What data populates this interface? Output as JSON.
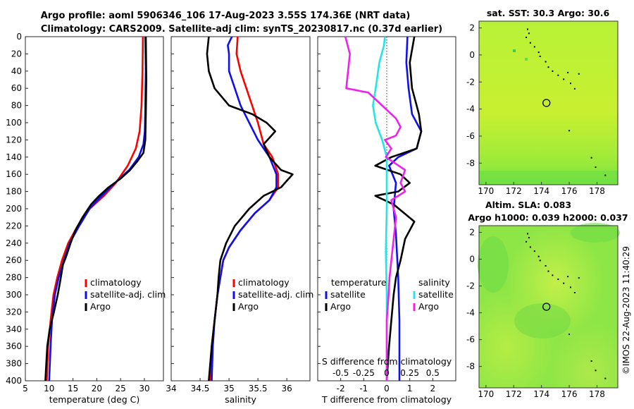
{
  "title": {
    "line1": "Argo profile: aoml 5906346_106 17-Aug-2023 3.55S 174.36E (NRT data)",
    "line2": "Climatology: CARS2009. Satellite-adj clim: synTS_20230817.nc (0.37d earlier)"
  },
  "credit": "©IMOS 22-Aug-2023 11:40:29",
  "colors": {
    "climatology": "#ff0000",
    "satellite": "#1010ee",
    "argo": "#000000",
    "sal_sat": "#22e6e6",
    "sal_argo": "#ee22ee"
  },
  "chart_data": [
    {
      "type": "line",
      "name": "temperature",
      "xlabel": "temperature (deg C)",
      "ylabel": "",
      "xlim": [
        5,
        34
      ],
      "ylim": [
        0,
        400
      ],
      "xticks": [
        5,
        10,
        15,
        20,
        25,
        30
      ],
      "yticks": [
        0,
        20,
        40,
        60,
        80,
        100,
        120,
        140,
        160,
        180,
        200,
        220,
        240,
        260,
        280,
        300,
        320,
        340,
        360,
        380,
        400
      ],
      "legend": [
        "climatology",
        "satellite-adj. clim",
        "Argo"
      ],
      "series": [
        {
          "name": "climatology",
          "color": "#ff0000",
          "points": [
            [
              29.7,
              0
            ],
            [
              29.6,
              40
            ],
            [
              29.4,
              80
            ],
            [
              29.0,
              110
            ],
            [
              28.2,
              130
            ],
            [
              26.5,
              150
            ],
            [
              24.0,
              170
            ],
            [
              21.5,
              185
            ],
            [
              18.5,
              200
            ],
            [
              16.0,
              220
            ],
            [
              14.0,
              240
            ],
            [
              12.7,
              260
            ],
            [
              11.7,
              280
            ],
            [
              10.9,
              300
            ],
            [
              10.3,
              330
            ],
            [
              9.8,
              360
            ],
            [
              9.5,
              400
            ]
          ]
        },
        {
          "name": "satellite-adj. clim",
          "color": "#1010ee",
          "points": [
            [
              30.2,
              0
            ],
            [
              30.3,
              40
            ],
            [
              30.2,
              80
            ],
            [
              30.1,
              110
            ],
            [
              29.8,
              125
            ],
            [
              28.8,
              140
            ],
            [
              26.8,
              155
            ],
            [
              23.8,
              170
            ],
            [
              21.0,
              185
            ],
            [
              18.5,
              200
            ],
            [
              16.3,
              220
            ],
            [
              14.3,
              240
            ],
            [
              13.1,
              260
            ],
            [
              12.0,
              280
            ],
            [
              11.2,
              300
            ],
            [
              10.6,
              330
            ],
            [
              10.3,
              360
            ],
            [
              10.0,
              400
            ]
          ]
        },
        {
          "name": "Argo",
          "color": "#000000",
          "points": [
            [
              30.3,
              0
            ],
            [
              30.4,
              50
            ],
            [
              30.3,
              90
            ],
            [
              30.2,
              120
            ],
            [
              29.8,
              135
            ],
            [
              28.5,
              145
            ],
            [
              27.0,
              155
            ],
            [
              25.0,
              165
            ],
            [
              22.5,
              175
            ],
            [
              20.5,
              185
            ],
            [
              18.8,
              195
            ],
            [
              17.0,
              210
            ],
            [
              15.5,
              225
            ],
            [
              14.5,
              240
            ],
            [
              13.6,
              255
            ],
            [
              12.9,
              265
            ],
            [
              12.3,
              285
            ],
            [
              11.8,
              300
            ],
            [
              11.0,
              320
            ],
            [
              10.1,
              340
            ],
            [
              9.6,
              360
            ],
            [
              9.4,
              380
            ],
            [
              9.2,
              400
            ]
          ]
        }
      ]
    },
    {
      "type": "line",
      "name": "salinity",
      "xlabel": "salinity",
      "ylabel": "",
      "xlim": [
        34,
        36.4
      ],
      "ylim": [
        0,
        400
      ],
      "xticks": [
        34,
        34.5,
        35,
        35.5,
        36
      ],
      "legend": [
        "climatology",
        "satellite-adj. clim",
        "Argo"
      ],
      "series": [
        {
          "name": "climatology",
          "color": "#ff0000",
          "points": [
            [
              35.15,
              0
            ],
            [
              35.13,
              20
            ],
            [
              35.2,
              40
            ],
            [
              35.3,
              60
            ],
            [
              35.4,
              80
            ],
            [
              35.5,
              100
            ],
            [
              35.6,
              125
            ],
            [
              35.75,
              140
            ],
            [
              35.85,
              160
            ],
            [
              35.85,
              175
            ],
            [
              35.7,
              190
            ],
            [
              35.45,
              205
            ],
            [
              35.2,
              225
            ],
            [
              35.0,
              245
            ],
            [
              34.9,
              260
            ],
            [
              34.85,
              280
            ],
            [
              34.8,
              300
            ],
            [
              34.75,
              330
            ],
            [
              34.7,
              360
            ],
            [
              34.68,
              400
            ]
          ]
        },
        {
          "name": "satellite-adj. clim",
          "color": "#1010ee",
          "points": [
            [
              35.05,
              0
            ],
            [
              34.98,
              10
            ],
            [
              35.0,
              20
            ],
            [
              35.0,
              40
            ],
            [
              35.1,
              60
            ],
            [
              35.2,
              80
            ],
            [
              35.35,
              100
            ],
            [
              35.5,
              120
            ],
            [
              35.7,
              140
            ],
            [
              35.82,
              160
            ],
            [
              35.82,
              175
            ],
            [
              35.7,
              190
            ],
            [
              35.45,
              205
            ],
            [
              35.2,
              225
            ],
            [
              35.0,
              245
            ],
            [
              34.9,
              260
            ],
            [
              34.85,
              280
            ],
            [
              34.8,
              300
            ],
            [
              34.75,
              330
            ],
            [
              34.72,
              360
            ],
            [
              34.7,
              400
            ]
          ]
        },
        {
          "name": "Argo",
          "color": "#000000",
          "points": [
            [
              34.65,
              0
            ],
            [
              34.62,
              20
            ],
            [
              34.65,
              40
            ],
            [
              34.75,
              60
            ],
            [
              35.0,
              80
            ],
            [
              35.4,
              90
            ],
            [
              35.65,
              100
            ],
            [
              35.8,
              110
            ],
            [
              35.6,
              125
            ],
            [
              35.7,
              140
            ],
            [
              35.9,
              155
            ],
            [
              36.1,
              160
            ],
            [
              35.9,
              175
            ],
            [
              35.6,
              185
            ],
            [
              35.35,
              200
            ],
            [
              35.1,
              220
            ],
            [
              34.95,
              240
            ],
            [
              34.85,
              260
            ],
            [
              34.82,
              280
            ],
            [
              34.8,
              300
            ],
            [
              34.75,
              330
            ],
            [
              34.7,
              360
            ],
            [
              34.65,
              400
            ]
          ]
        }
      ]
    },
    {
      "type": "line",
      "name": "difference",
      "xlabel": "T difference from climatology",
      "x2label": "S difference from climatology",
      "ylabel": "",
      "xlim": [
        -3,
        3
      ],
      "x2lim": [
        -0.75,
        0.75
      ],
      "ylim": [
        0,
        400
      ],
      "xticks": [
        -2,
        -1,
        0,
        1,
        2
      ],
      "x2ticks": [
        -0.5,
        -0.25,
        0,
        0.25,
        0.5
      ],
      "x2ticklabels": [
        "-0.5",
        "-0.25",
        "0",
        "0.25",
        "0.5"
      ],
      "legend_temperature_title": "temperature",
      "legend_salinity_title": "salinity",
      "legend": [
        "satellite",
        "Argo"
      ],
      "series": [
        {
          "name": "temperature satellite",
          "color": "#1010ee",
          "points": [
            [
              0.9,
              0
            ],
            [
              0.85,
              30
            ],
            [
              0.95,
              60
            ],
            [
              1.1,
              90
            ],
            [
              1.5,
              110
            ],
            [
              1.3,
              130
            ],
            [
              0.5,
              140
            ],
            [
              0.1,
              150
            ],
            [
              0.4,
              170
            ],
            [
              0.3,
              200
            ],
            [
              0.4,
              230
            ],
            [
              0.5,
              280
            ],
            [
              0.55,
              330
            ],
            [
              0.55,
              400
            ]
          ]
        },
        {
          "name": "temperature Argo",
          "color": "#000000",
          "points": [
            [
              1.2,
              0
            ],
            [
              1.0,
              30
            ],
            [
              1.1,
              60
            ],
            [
              1.4,
              90
            ],
            [
              1.5,
              110
            ],
            [
              1.3,
              130
            ],
            [
              0.2,
              140
            ],
            [
              -0.5,
              150
            ],
            [
              0.6,
              160
            ],
            [
              1.0,
              170
            ],
            [
              0.5,
              180
            ],
            [
              -0.5,
              185
            ],
            [
              0.3,
              195
            ],
            [
              1.2,
              215
            ],
            [
              0.8,
              235
            ],
            [
              0.6,
              260
            ],
            [
              0.4,
              280
            ],
            [
              0.3,
              300
            ],
            [
              0.2,
              330
            ],
            [
              0.1,
              360
            ],
            [
              0,
              400
            ]
          ]
        },
        {
          "name": "salinity satellite",
          "color": "#22e6e6",
          "points": [
            [
              -0.02,
              0
            ],
            [
              -0.03,
              10
            ],
            [
              -0.08,
              30
            ],
            [
              -0.12,
              60
            ],
            [
              -0.15,
              80
            ],
            [
              -0.12,
              100
            ],
            [
              -0.05,
              120
            ],
            [
              0.0,
              140
            ],
            [
              0.0,
              170
            ],
            [
              0.0,
              200
            ],
            [
              -0.01,
              250
            ],
            [
              0.0,
              300
            ],
            [
              0.0,
              360
            ],
            [
              0.0,
              400
            ]
          ]
        },
        {
          "name": "salinity Argo",
          "color": "#ee22ee",
          "points": [
            [
              -0.45,
              0
            ],
            [
              -0.4,
              20
            ],
            [
              -0.42,
              40
            ],
            [
              -0.44,
              60
            ],
            [
              -0.2,
              65
            ],
            [
              -0.1,
              75
            ],
            [
              0.1,
              95
            ],
            [
              0.15,
              105
            ],
            [
              0.1,
              115
            ],
            [
              -0.02,
              120
            ],
            [
              0.05,
              130
            ],
            [
              -0.01,
              140
            ],
            [
              0.2,
              155
            ],
            [
              0.15,
              170
            ],
            [
              0.2,
              180
            ],
            [
              0.05,
              190
            ],
            [
              0.1,
              210
            ],
            [
              0.08,
              230
            ],
            [
              0.05,
              260
            ],
            [
              0.03,
              280
            ],
            [
              0.02,
              300
            ],
            [
              0.0,
              330
            ],
            [
              0.0,
              360
            ],
            [
              0.0,
              400
            ]
          ]
        }
      ]
    },
    {
      "type": "heatmap",
      "name": "satellite-sst-map",
      "title": "sat. SST: 30.3 Argo: 30.6",
      "xlim": [
        169.5,
        179.5
      ],
      "ylim": [
        -9.6,
        2.5
      ],
      "xticks": [
        170,
        172,
        174,
        176,
        178
      ],
      "yticks": [
        2,
        0,
        -2,
        -4,
        -6,
        -8
      ],
      "argo_position": [
        174.36,
        -3.55
      ]
    },
    {
      "type": "heatmap",
      "name": "altimetry-sla-map",
      "title": "Altim. SLA: 0.083",
      "subtitle": "Argo h1000: 0.039 h2000: 0.037",
      "xlim": [
        169.5,
        179.5
      ],
      "ylim": [
        -9.6,
        2.5
      ],
      "xticks": [
        170,
        172,
        174,
        176,
        178
      ],
      "yticks": [
        2,
        0,
        -2,
        -4,
        -6,
        -8
      ],
      "argo_position": [
        174.36,
        -3.55
      ]
    }
  ]
}
